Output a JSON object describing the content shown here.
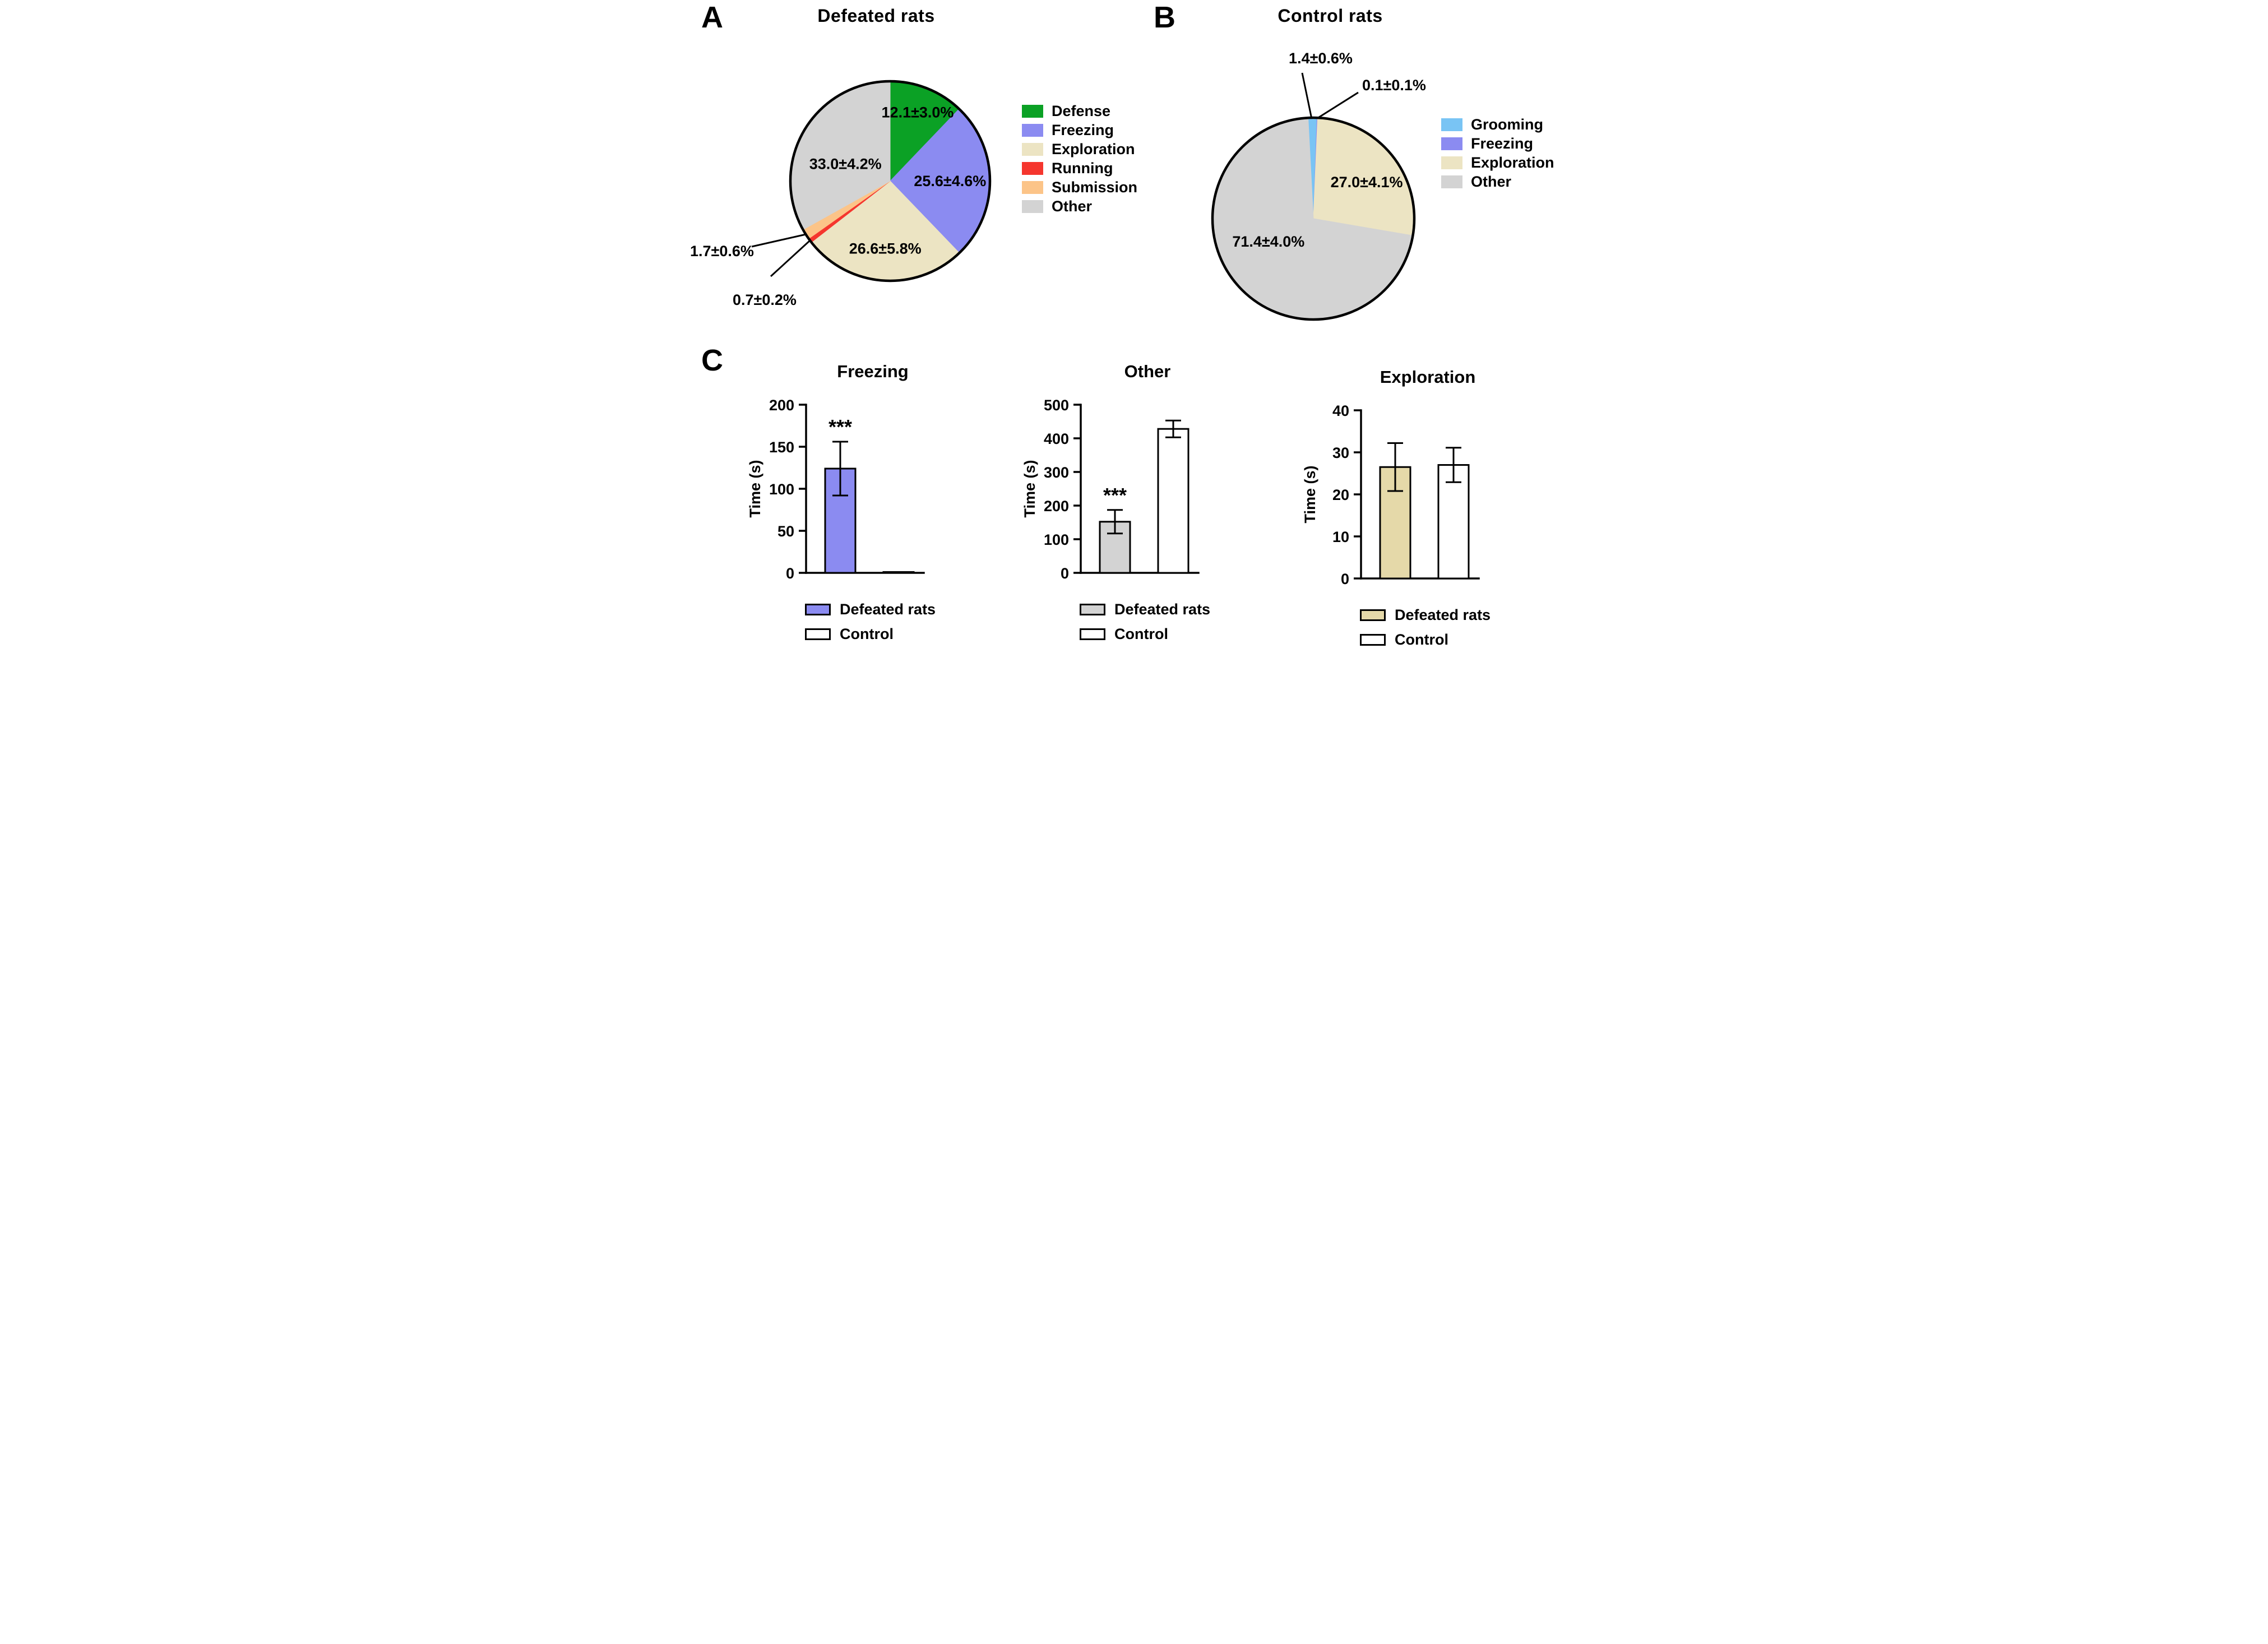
{
  "panels": {
    "a": {
      "label": "A"
    },
    "b": {
      "label": "B"
    },
    "c": {
      "label": "C"
    }
  },
  "chart_data": [
    {
      "id": "pie-defeated",
      "type": "pie",
      "panel": "A",
      "title": "Defeated rats",
      "slices": [
        {
          "label": "Defense",
          "value": 12.1,
          "sem": 3.0,
          "display": "12.1±3.0%",
          "color": "#0ba125",
          "label_placement": "inside"
        },
        {
          "label": "Freezing",
          "value": 25.6,
          "sem": 4.6,
          "display": "25.6±4.6%",
          "color": "#8b8bf1",
          "label_placement": "inside"
        },
        {
          "label": "Exploration",
          "value": 26.6,
          "sem": 5.8,
          "display": "26.6±5.8%",
          "color": "#ece4c3",
          "label_placement": "inside"
        },
        {
          "label": "Running",
          "value": 0.7,
          "sem": 0.2,
          "display": "0.7±0.2%",
          "color": "#f5362e",
          "label_placement": "outside"
        },
        {
          "label": "Submission",
          "value": 1.7,
          "sem": 0.6,
          "display": "1.7±0.6%",
          "color": "#fcc488",
          "label_placement": "outside"
        },
        {
          "label": "Other",
          "value": 33.0,
          "sem": 4.2,
          "display": "33.0±4.2%",
          "color": "#d3d3d3",
          "label_placement": "inside"
        }
      ],
      "legend": [
        "Defense",
        "Freezing",
        "Exploration",
        "Running",
        "Submission",
        "Other"
      ]
    },
    {
      "id": "pie-control",
      "type": "pie",
      "panel": "B",
      "title": "Control rats",
      "slices": [
        {
          "label": "Grooming",
          "value": 1.4,
          "sem": 0.6,
          "display": "1.4±0.6%",
          "color": "#79c4f4",
          "label_placement": "outside"
        },
        {
          "label": "Freezing",
          "value": 0.1,
          "sem": 0.1,
          "display": "0.1±0.1%",
          "color": "#8b8bf1",
          "label_placement": "outside"
        },
        {
          "label": "Exploration",
          "value": 27.0,
          "sem": 4.1,
          "display": "27.0±4.1%",
          "color": "#ece4c3",
          "label_placement": "inside"
        },
        {
          "label": "Other",
          "value": 71.4,
          "sem": 4.0,
          "display": "71.4±4.0%",
          "color": "#d3d3d3",
          "label_placement": "inside"
        }
      ],
      "legend": [
        "Grooming",
        "Freezing",
        "Exploration",
        "Other"
      ]
    },
    {
      "id": "bar-freezing",
      "type": "bar",
      "panel": "C",
      "title": "Freezing",
      "ylabel": "Time (s)",
      "ylim": [
        0,
        200
      ],
      "yticks": [
        0,
        50,
        100,
        150,
        200
      ],
      "bars": [
        {
          "label": "Defeated rats",
          "value": 124,
          "error": 32,
          "color": "#8b8bf1",
          "significance": "***"
        },
        {
          "label": "Control",
          "value": 1,
          "error": 0,
          "color": "#ffffff",
          "significance": ""
        }
      ],
      "legend": [
        {
          "label": "Defeated rats",
          "color": "#8b8bf1"
        },
        {
          "label": "Control",
          "color": "#ffffff"
        }
      ]
    },
    {
      "id": "bar-other",
      "type": "bar",
      "panel": "C",
      "title": "Other",
      "ylabel": "Time (s)",
      "ylim": [
        0,
        500
      ],
      "yticks": [
        0,
        100,
        200,
        300,
        400,
        500
      ],
      "bars": [
        {
          "label": "Defeated rats",
          "value": 152,
          "error": 35,
          "color": "#d3d3d3",
          "significance": "***"
        },
        {
          "label": "Control",
          "value": 428,
          "error": 25,
          "color": "#ffffff",
          "significance": ""
        }
      ],
      "legend": [
        {
          "label": "Defeated rats",
          "color": "#d3d3d3"
        },
        {
          "label": "Control",
          "color": "#ffffff"
        }
      ]
    },
    {
      "id": "bar-exploration",
      "type": "bar",
      "panel": "C",
      "title": "Exploration",
      "ylabel": "Time (s)",
      "ylim": [
        0,
        40
      ],
      "yticks": [
        0,
        10,
        20,
        30,
        40
      ],
      "bars": [
        {
          "label": "Defeated rats",
          "value": 26.5,
          "error": 5.7,
          "color": "#e5d9a9",
          "significance": ""
        },
        {
          "label": "Control",
          "value": 27,
          "error": 4.1,
          "color": "#ffffff",
          "significance": ""
        }
      ],
      "legend": [
        {
          "label": "Defeated rats",
          "color": "#e5d9a9"
        },
        {
          "label": "Control",
          "color": "#ffffff"
        }
      ]
    }
  ]
}
